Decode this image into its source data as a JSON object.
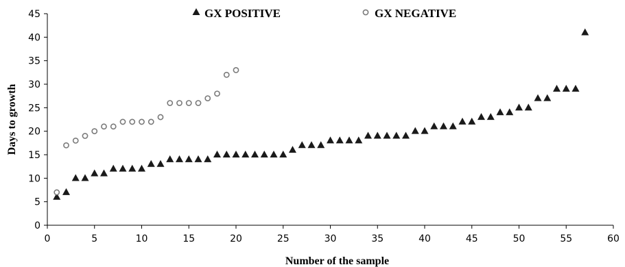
{
  "chart_data": {
    "type": "scatter",
    "xlabel": "Number of the sample",
    "ylabel": "Days to growth",
    "xlim": [
      0,
      60
    ],
    "ylim": [
      0,
      45
    ],
    "xticks": [
      0,
      5,
      10,
      15,
      20,
      25,
      30,
      35,
      40,
      45,
      50,
      55,
      60
    ],
    "yticks": [
      0,
      5,
      10,
      15,
      20,
      25,
      30,
      35,
      40,
      45
    ],
    "grid": false,
    "legend_position": "top",
    "series": [
      {
        "name": "GX POSITIVE",
        "marker": "triangle",
        "color": "#1a1a1a",
        "x": [
          1,
          2,
          3,
          4,
          5,
          6,
          7,
          8,
          9,
          10,
          11,
          12,
          13,
          14,
          15,
          16,
          17,
          18,
          19,
          20,
          21,
          22,
          23,
          24,
          25,
          26,
          27,
          28,
          29,
          30,
          31,
          32,
          33,
          34,
          35,
          36,
          37,
          38,
          39,
          40,
          41,
          42,
          43,
          44,
          45,
          46,
          47,
          48,
          49,
          50,
          51,
          52,
          53,
          54,
          55,
          56,
          57
        ],
        "y": [
          6,
          7,
          10,
          10,
          11,
          11,
          12,
          12,
          12,
          12,
          13,
          13,
          14,
          14,
          14,
          14,
          14,
          15,
          15,
          15,
          15,
          15,
          15,
          15,
          15,
          16,
          17,
          17,
          17,
          18,
          18,
          18,
          18,
          19,
          19,
          19,
          19,
          19,
          20,
          20,
          21,
          21,
          21,
          22,
          22,
          23,
          23,
          24,
          24,
          25,
          25,
          27,
          27,
          29,
          29,
          29,
          41
        ]
      },
      {
        "name": "GX NEGATIVE",
        "marker": "open-circle",
        "color": "#7a7a7a",
        "x": [
          1,
          2,
          3,
          4,
          5,
          6,
          7,
          8,
          9,
          10,
          11,
          12,
          13,
          14,
          15,
          16,
          17,
          18,
          19,
          20
        ],
        "y": [
          7,
          17,
          18,
          19,
          20,
          21,
          21,
          22,
          22,
          22,
          22,
          23,
          26,
          26,
          26,
          26,
          27,
          28,
          32,
          33
        ]
      }
    ]
  }
}
